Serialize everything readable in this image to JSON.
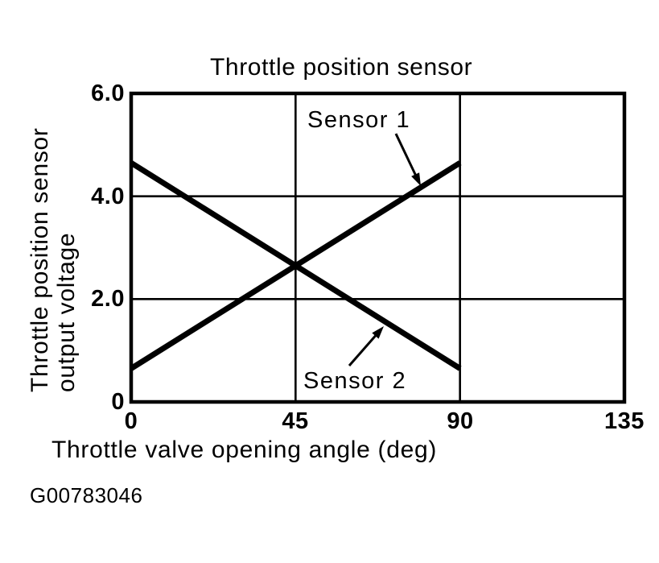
{
  "chart_data": {
    "type": "line",
    "title": "Throttle position sensor",
    "xlabel": "Throttle valve opening angle (deg)",
    "ylabel": "Throttle position sensor output voltage",
    "ylabel_lines": [
      "Throttle position sensor",
      "output voltage"
    ],
    "xlim": [
      0,
      135
    ],
    "ylim": [
      0,
      6
    ],
    "x_ticks": [
      0,
      45,
      90,
      135
    ],
    "x_tick_labels": [
      "0",
      "45",
      "90",
      "135"
    ],
    "y_ticks": [
      0,
      2,
      4,
      6
    ],
    "y_tick_labels": [
      "0",
      "2.0",
      "4.0",
      "6.0"
    ],
    "grid": true,
    "legend_position": "none",
    "series": [
      {
        "name": "Sensor 1",
        "points": [
          [
            0,
            0.65
          ],
          [
            90,
            4.65
          ]
        ]
      },
      {
        "name": "Sensor 2",
        "points": [
          [
            0,
            4.65
          ],
          [
            90,
            0.65
          ]
        ]
      }
    ],
    "annotations": [
      {
        "text": "Sensor 1"
      },
      {
        "text": "Sensor 2"
      }
    ]
  },
  "footer": {
    "figure_id": "G00783046"
  },
  "colors": {
    "ink": "#000000",
    "background": "#ffffff"
  }
}
